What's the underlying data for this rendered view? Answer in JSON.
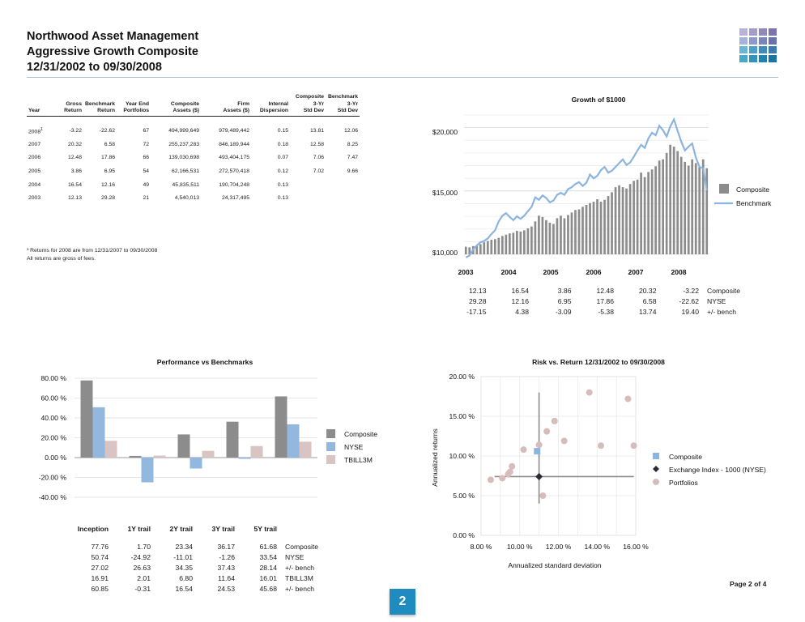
{
  "header": {
    "line1": "Northwood Asset Management",
    "line2": "Aggressive Growth Composite",
    "line3": "12/31/2002 to 09/30/2008"
  },
  "composite_table": {
    "columns": [
      {
        "top": "",
        "mid": "",
        "bot": "Year"
      },
      {
        "top": "",
        "mid": "Gross",
        "bot": "Return"
      },
      {
        "top": "",
        "mid": "Benchmark",
        "bot": "Return"
      },
      {
        "top": "",
        "mid": "Year End",
        "bot": "Portfolios"
      },
      {
        "top": "",
        "mid": "Composite",
        "bot": "Assets ($)"
      },
      {
        "top": "",
        "mid": "Firm",
        "bot": "Assets ($)"
      },
      {
        "top": "",
        "mid": "Internal",
        "bot": "Dispersion"
      },
      {
        "top": "Composite",
        "mid": "3-Yr",
        "bot": "Std Dev"
      },
      {
        "top": "Benchmark",
        "mid": "3-Yr",
        "bot": "Std Dev"
      }
    ],
    "rows": [
      [
        "2008",
        "-3.22",
        "-22.62",
        "67",
        "494,999,649",
        "979,489,442",
        "0.15",
        "13.81",
        "12.06"
      ],
      [
        "2007",
        "20.32",
        "6.58",
        "72",
        "255,237,283",
        "846,189,944",
        "0.18",
        "12.58",
        "8.25"
      ],
      [
        "2006",
        "12.48",
        "17.86",
        "66",
        "139,030,698",
        "493,404,175",
        "0.07",
        "7.06",
        "7.47"
      ],
      [
        "2005",
        "3.86",
        "6.95",
        "54",
        "62,166,531",
        "272,570,418",
        "0.12",
        "7.02",
        "9.66"
      ],
      [
        "2004",
        "16.54",
        "12.16",
        "49",
        "45,835,511",
        "190,704,248",
        "0.13",
        "",
        ""
      ],
      [
        "2003",
        "12.13",
        "29.28",
        "21",
        "4,540,013",
        "24,317,495",
        "0.13",
        "",
        ""
      ]
    ],
    "first_year_marker": "1",
    "footnote1": "¹ Returns for 2008 are from 12/31/2007 to 09/30/2008",
    "footnote2": "All returns are gross of fees."
  },
  "growth_chart": {
    "title": "Growth of $1000",
    "y_tick_labels": [
      "$20,000",
      "$15,000",
      "$10,000"
    ],
    "x_tick_labels": [
      "2003",
      "2004",
      "2005",
      "2006",
      "2007",
      "2008"
    ],
    "legend": [
      "Composite",
      "Benchmark"
    ],
    "colors": {
      "composite": "#8c8c8c",
      "benchmark": "#8cb4de"
    },
    "table": {
      "rows": [
        {
          "label": "Composite",
          "values": [
            "12.13",
            "16.54",
            "3.86",
            "12.48",
            "20.32",
            "-3.22"
          ]
        },
        {
          "label": "NYSE",
          "values": [
            "29.28",
            "12.16",
            "6.95",
            "17.86",
            "6.58",
            "-22.62"
          ]
        },
        {
          "label": "+/- bench",
          "values": [
            "-17.15",
            "4.38",
            "-3.09",
            "-5.38",
            "13.74",
            "19.40"
          ]
        }
      ]
    }
  },
  "perf_chart": {
    "title": "Performance vs Benchmarks",
    "y_tick_labels": [
      "80.00 %",
      "60.00 %",
      "40.00 %",
      "20.00 %",
      "0.00 %",
      "-20.00 %",
      "-40.00 %"
    ],
    "legend": [
      "Composite",
      "NYSE",
      "TBILL3M"
    ],
    "colors": {
      "composite": "#8c8c8c",
      "nyse": "#92b8e0",
      "tbill": "#d9c3c3"
    },
    "table": {
      "headers": [
        "Inception",
        "1Y trail",
        "2Y trail",
        "3Y trail",
        "5Y trail"
      ],
      "rows": [
        {
          "label": "Composite",
          "values": [
            "77.76",
            "1.70",
            "23.34",
            "36.17",
            "61.68"
          ]
        },
        {
          "label": "NYSE",
          "values": [
            "50.74",
            "-24.92",
            "-11.01",
            "-1.26",
            "33.54"
          ]
        },
        {
          "label": "+/- bench",
          "values": [
            "27.02",
            "26.63",
            "34.35",
            "37.43",
            "28.14"
          ]
        },
        {
          "label": "TBILL3M",
          "values": [
            "16.91",
            "2.01",
            "6.80",
            "11.64",
            "16.01"
          ]
        },
        {
          "label": "+/- bench",
          "values": [
            "60.85",
            "-0.31",
            "16.54",
            "24.53",
            "45.68"
          ]
        }
      ]
    }
  },
  "risk_chart": {
    "title": "Risk vs. Return 12/31/2002 to 09/30/2008",
    "y_tick_labels": [
      "20.00 %",
      "15.00 %",
      "10.00 %",
      "5.00 %",
      "0.00 %"
    ],
    "x_tick_labels": [
      "8.00 %",
      "10.00 %",
      "12.00 %",
      "14.00 %",
      "16.00 %"
    ],
    "ylabel": "Annualized returns",
    "xlabel": "Annualized standard deviation",
    "legend": [
      "Composite",
      "Exchange Index - 1000 (NYSE)",
      "Portfolios"
    ],
    "colors": {
      "composite": "#8cb4de",
      "index": "#2a2a3a",
      "portfolios": "#d7bcbc"
    }
  },
  "chart_data": [
    {
      "type": "bar",
      "title": "Growth of $1000",
      "note": "monthly composite growth (bars) vs benchmark (line), approximate read-off",
      "ylim": [
        10000,
        21000
      ],
      "series": [
        {
          "name": "Composite",
          "values": [
            10600,
            10550,
            10650,
            10700,
            10800,
            10950,
            11050,
            11150,
            11200,
            11300,
            11450,
            11550,
            11650,
            11700,
            11850,
            11800,
            11900,
            12050,
            12200,
            12600,
            13050,
            12950,
            12700,
            12500,
            12400,
            12850,
            13050,
            12850,
            13100,
            13300,
            13500,
            13550,
            13750,
            13900,
            14050,
            14150,
            14350,
            14150,
            14300,
            14600,
            14900,
            15300,
            15450,
            15300,
            15200,
            15550,
            15800,
            15900,
            16450,
            16100,
            16500,
            16700,
            16950,
            17400,
            17500,
            18000,
            18650,
            18500,
            18150,
            17700,
            17300,
            17000,
            17500,
            17200,
            16900,
            17500,
            16800
          ]
        },
        {
          "name": "Benchmark",
          "values": [
            9750,
            9900,
            10400,
            10700,
            10950,
            11050,
            11250,
            11600,
            11900,
            12600,
            13050,
            13250,
            12950,
            12700,
            13000,
            12800,
            13050,
            13400,
            13750,
            14500,
            14300,
            14650,
            14450,
            14100,
            14250,
            14700,
            14850,
            14700,
            15150,
            15300,
            15550,
            15700,
            15400,
            15650,
            16300,
            16000,
            16200,
            16650,
            16900,
            16450,
            16600,
            16900,
            17200,
            17500,
            17050,
            17250,
            17700,
            18200,
            18650,
            18400,
            19150,
            19600,
            19400,
            20150,
            19800,
            19300,
            20100,
            20650,
            19750,
            18900,
            18200,
            18500,
            18750,
            17650,
            16900,
            16800,
            15050
          ]
        }
      ]
    },
    {
      "type": "bar",
      "title": "Performance vs Benchmarks",
      "categories": [
        "Inception",
        "1Y trail",
        "2Y trail",
        "3Y trail",
        "5Y trail"
      ],
      "ylim": [
        -40,
        80
      ],
      "series": [
        {
          "name": "Composite",
          "values": [
            77.76,
            1.7,
            23.34,
            36.17,
            61.68
          ]
        },
        {
          "name": "NYSE",
          "values": [
            50.74,
            -24.92,
            -11.01,
            -1.26,
            33.54
          ]
        },
        {
          "name": "TBILL3M",
          "values": [
            16.91,
            2.01,
            6.8,
            11.64,
            16.01
          ]
        }
      ]
    },
    {
      "type": "scatter",
      "title": "Risk vs. Return 12/31/2002 to 09/30/2008",
      "xlabel": "Annualized standard deviation",
      "ylabel": "Annualized returns",
      "xlim": [
        8,
        16
      ],
      "ylim": [
        0,
        20
      ],
      "series": [
        {
          "name": "Composite",
          "points": [
            [
              10.9,
              10.6
            ]
          ]
        },
        {
          "name": "Exchange Index - 1000 (NYSE)",
          "points": [
            [
              11.0,
              7.4
            ]
          ]
        },
        {
          "name": "Portfolios",
          "points": [
            [
              8.5,
              7.0
            ],
            [
              9.1,
              7.2
            ],
            [
              9.4,
              7.7
            ],
            [
              9.5,
              8.0
            ],
            [
              9.6,
              8.7
            ],
            [
              10.2,
              10.8
            ],
            [
              11.0,
              11.4
            ],
            [
              11.4,
              13.1
            ],
            [
              11.8,
              14.4
            ],
            [
              12.3,
              11.9
            ],
            [
              13.6,
              18.0
            ],
            [
              14.2,
              11.3
            ],
            [
              15.6,
              17.2
            ],
            [
              15.9,
              11.3
            ],
            [
              11.2,
              5.0
            ]
          ]
        }
      ]
    }
  ]
}
